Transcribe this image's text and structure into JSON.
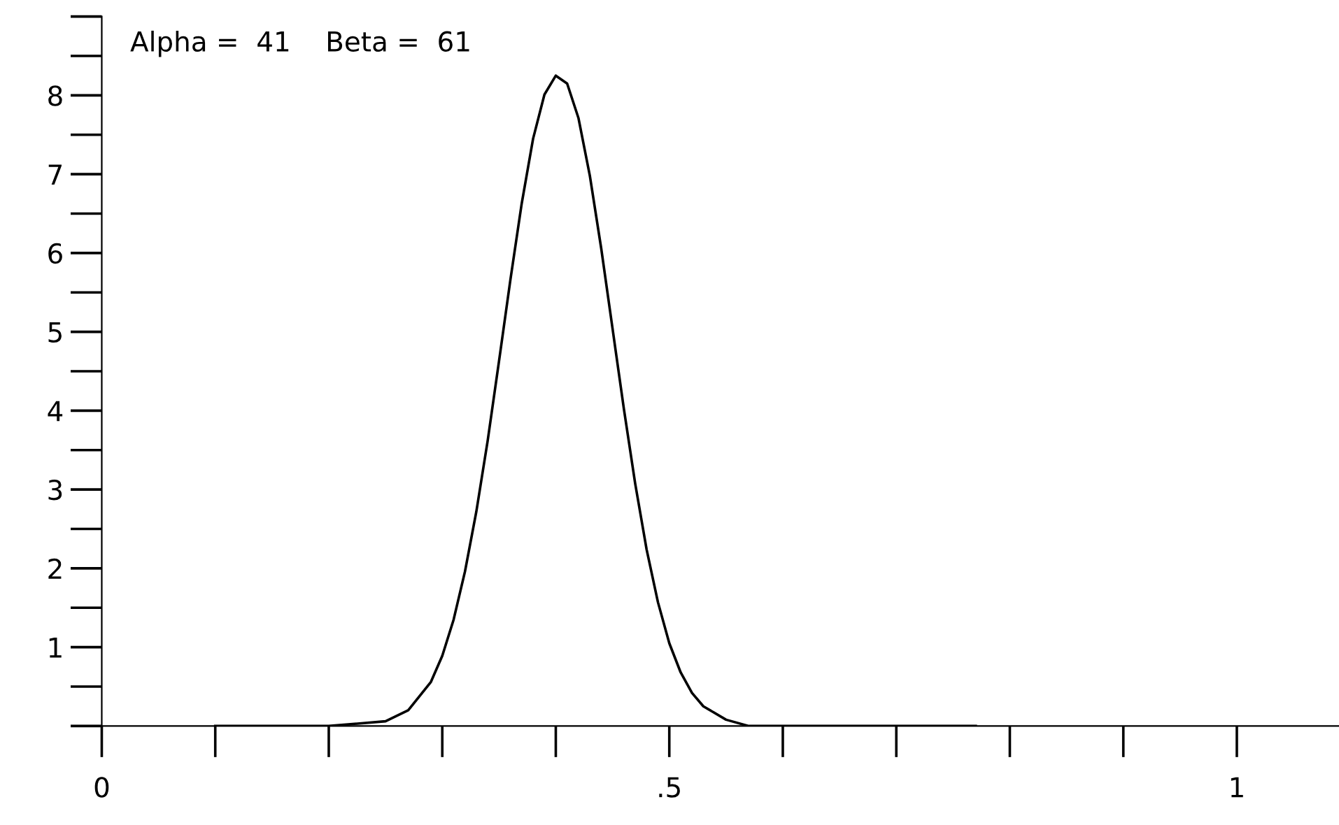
{
  "chart_data": {
    "type": "line",
    "x": [
      0.1,
      0.2,
      0.25,
      0.27,
      0.29,
      0.3,
      0.31,
      0.32,
      0.33,
      0.34,
      0.35,
      0.36,
      0.37,
      0.38,
      0.39,
      0.4,
      0.41,
      0.42,
      0.43,
      0.44,
      0.45,
      0.46,
      0.47,
      0.48,
      0.49,
      0.5,
      0.51,
      0.52,
      0.53,
      0.55,
      0.57,
      0.7,
      0.77
    ],
    "series": [
      {
        "color": "#000000",
        "values": [
          0,
          0,
          0.06,
          0.2,
          0.56,
          0.89,
          1.35,
          1.96,
          2.72,
          3.62,
          4.63,
          5.66,
          6.63,
          7.45,
          8.01,
          8.25,
          8.15,
          7.71,
          6.98,
          6.06,
          5.04,
          4.02,
          3.07,
          2.24,
          1.57,
          1.05,
          0.68,
          0.42,
          0.25,
          0.08,
          0,
          0,
          0
        ]
      }
    ],
    "annotations": [
      "Alpha =  41    Beta =  61"
    ],
    "xlim": [
      0,
      1.09
    ],
    "ylim": [
      0,
      9
    ],
    "xticks": [
      0,
      {
        "value": 0.5,
        "label": ".5"
      },
      1
    ],
    "yticks": [
      1,
      2,
      3,
      4,
      5,
      6,
      7,
      8
    ],
    "grid": false,
    "legend": false,
    "marker": "none",
    "line_style": "solid"
  }
}
